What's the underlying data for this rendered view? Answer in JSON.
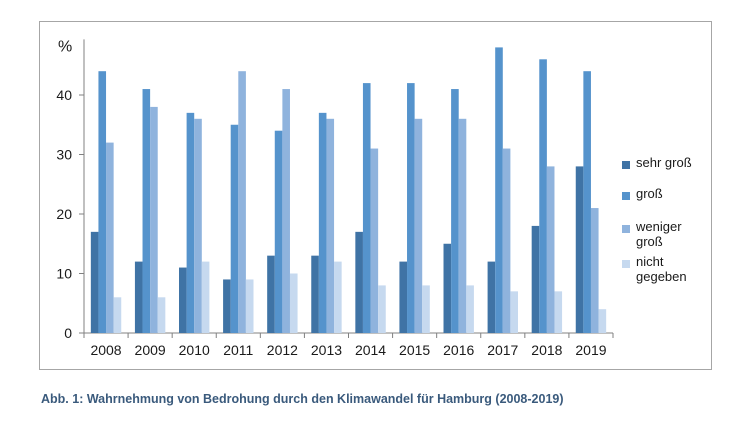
{
  "chart_data": {
    "type": "bar",
    "ylabel": "%",
    "ylim": [
      0,
      48
    ],
    "yticks": [
      0,
      10,
      20,
      30,
      40
    ],
    "grid": false,
    "legend_position": "right",
    "categories": [
      "2008",
      "2009",
      "2010",
      "2011",
      "2012",
      "2013",
      "2014",
      "2015",
      "2016",
      "2017",
      "2018",
      "2019"
    ],
    "series": [
      {
        "name": "sehr groß",
        "color": "#3f73a5",
        "values": [
          17,
          12,
          11,
          9,
          13,
          13,
          17,
          12,
          15,
          12,
          18,
          28
        ]
      },
      {
        "name": "groß",
        "color": "#5593cc",
        "values": [
          44,
          41,
          37,
          35,
          34,
          37,
          42,
          42,
          41,
          48,
          46,
          44
        ]
      },
      {
        "name": "weniger groß",
        "color": "#8fb3dd",
        "values": [
          32,
          38,
          36,
          44,
          41,
          36,
          31,
          36,
          36,
          31,
          28,
          21
        ]
      },
      {
        "name": "nicht gegeben",
        "color": "#c6d9ef",
        "values": [
          6,
          6,
          12,
          9,
          10,
          12,
          8,
          8,
          8,
          7,
          7,
          4
        ]
      }
    ]
  },
  "legend": {
    "items": [
      "sehr groß",
      "groß",
      "weniger\ngroß",
      "nicht\ngegeben"
    ]
  },
  "caption": "Abb. 1: Wahrnehmung von Bedrohung durch den Klimawandel für Hamburg (2008-2019)"
}
